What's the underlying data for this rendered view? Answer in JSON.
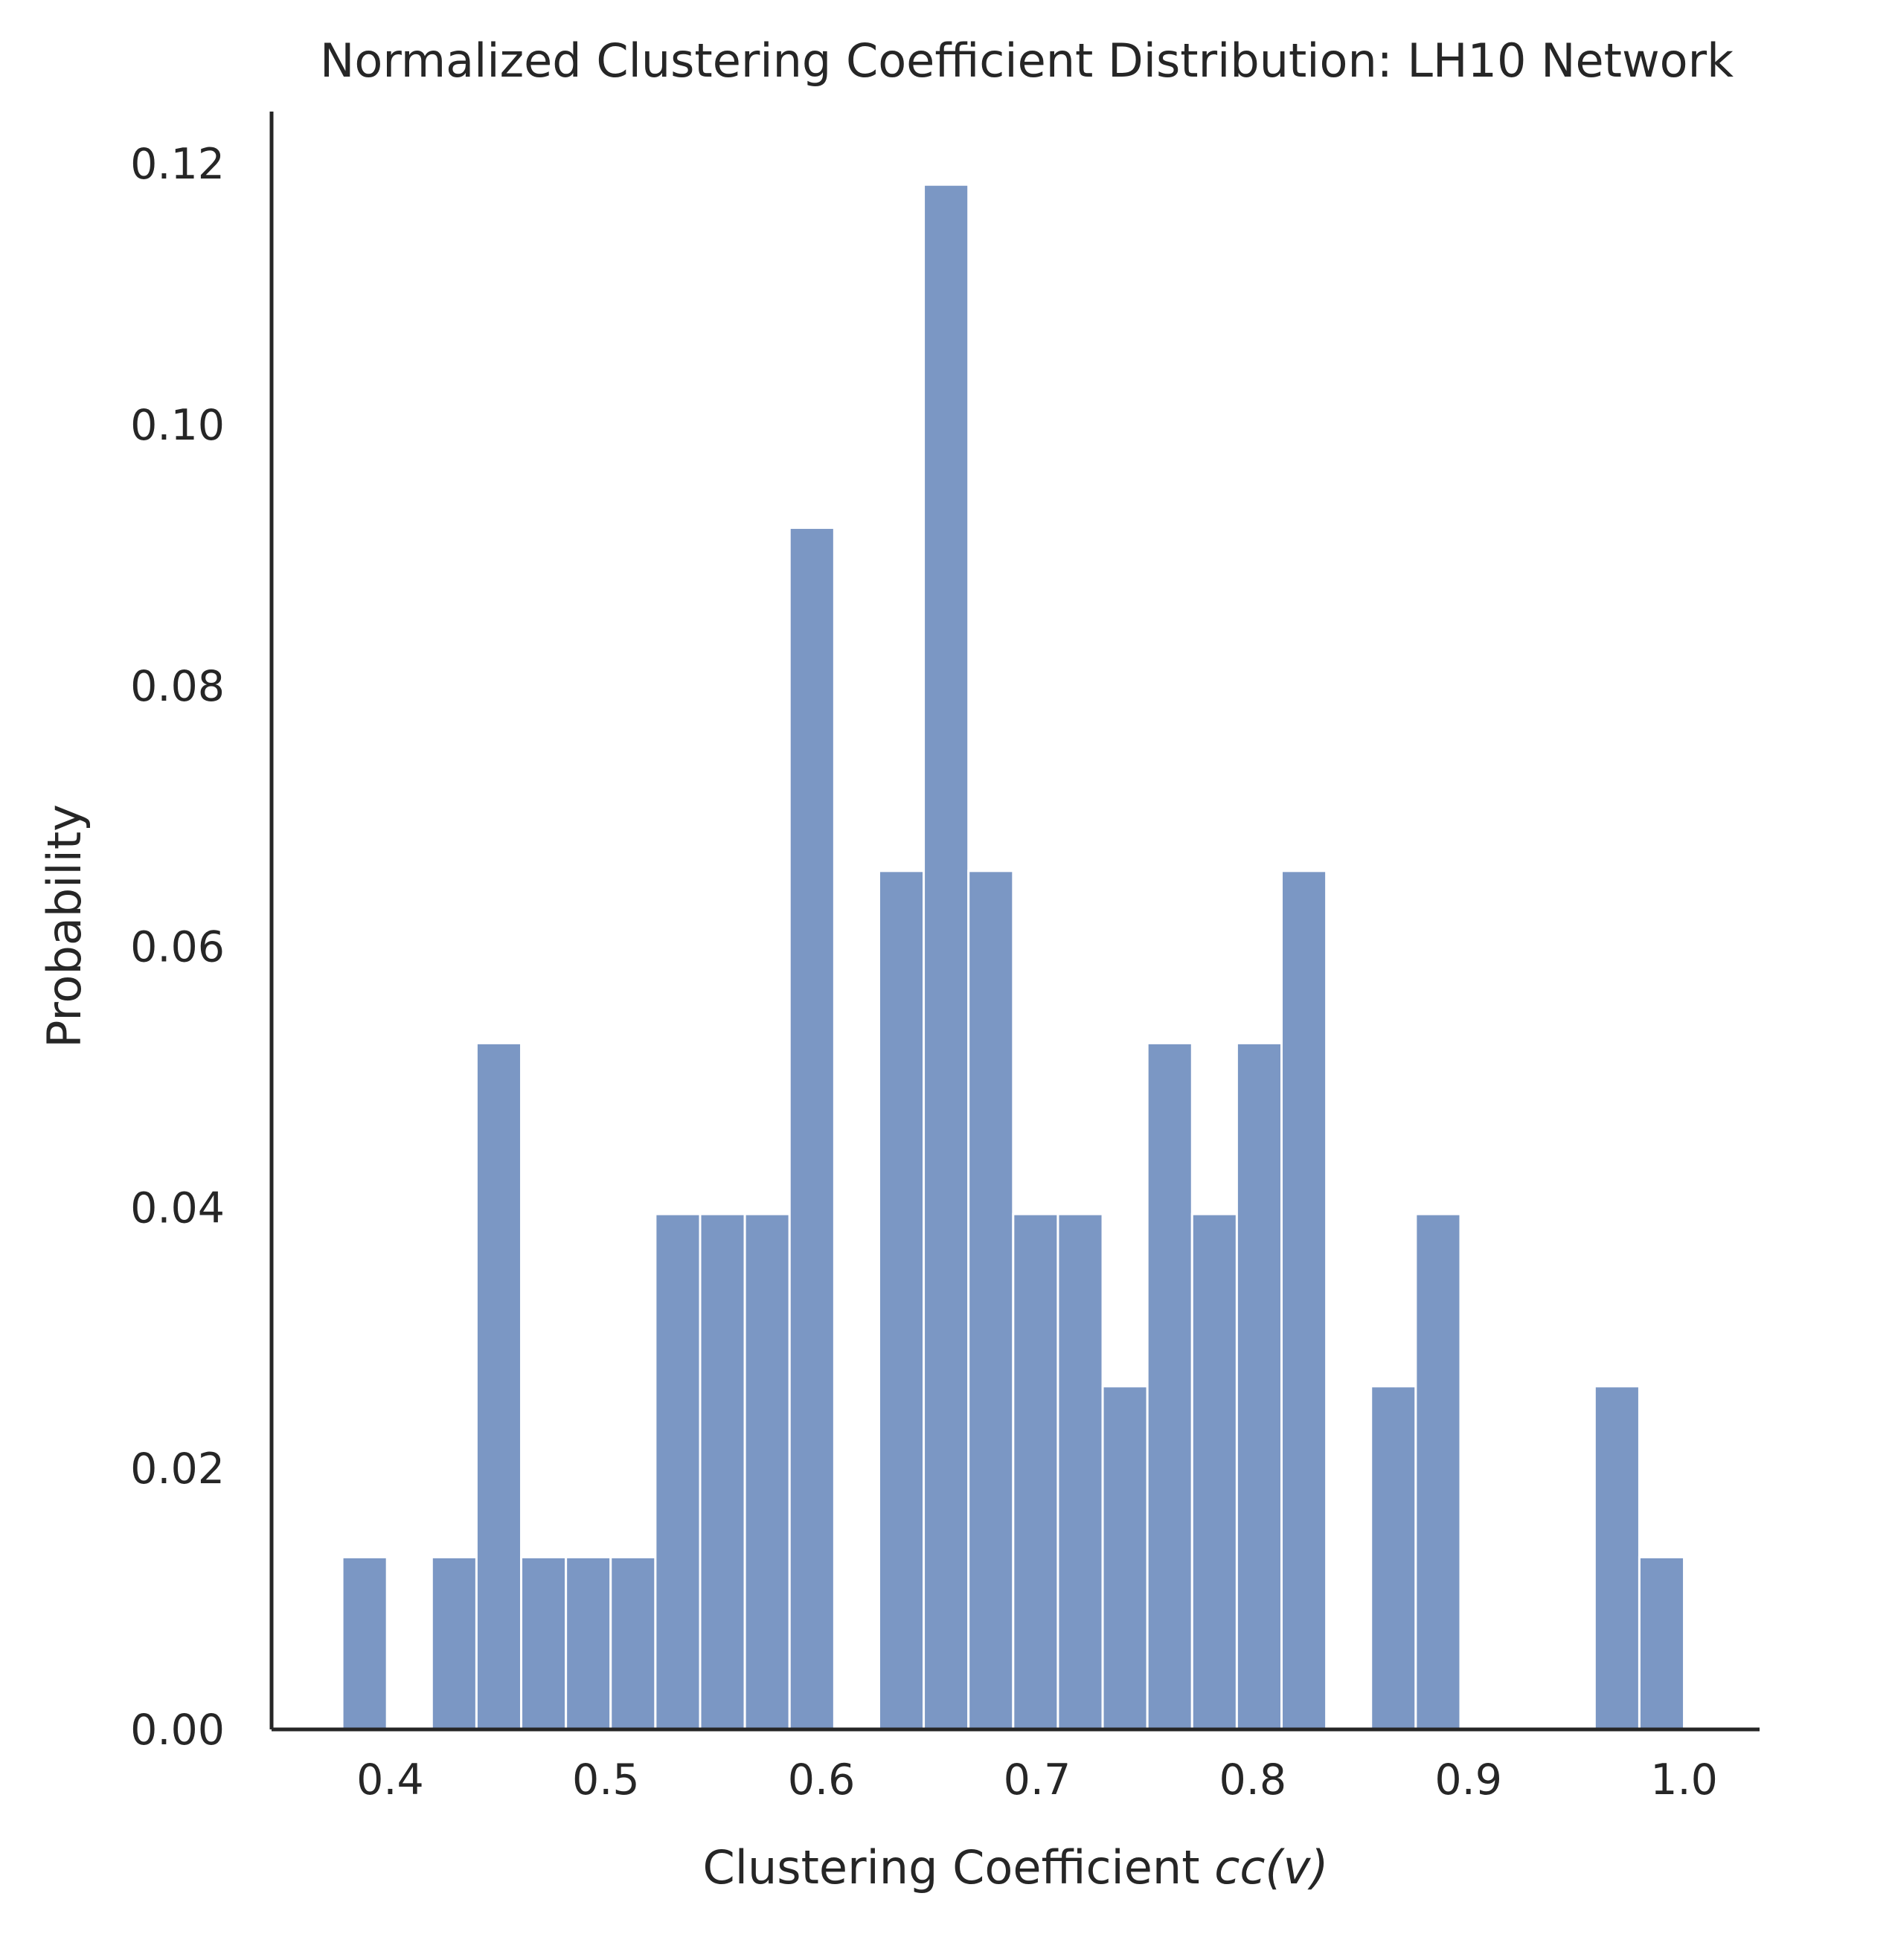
{
  "chart_data": {
    "type": "bar",
    "title": "Normalized Clustering Coefficient Distribution: LH10 Network",
    "xlabel_prefix": "Clustering Coefficient ",
    "xlabel_math": "cc(v)",
    "ylabel": "Probability",
    "xlim": [
      0.345,
      1.035
    ],
    "ylim": [
      0,
      0.124
    ],
    "xticks": [
      0.4,
      0.5,
      0.6,
      0.7,
      0.8,
      0.9,
      1.0
    ],
    "xtick_labels": [
      "0.4",
      "0.5",
      "0.6",
      "0.7",
      "0.8",
      "0.9",
      "1.0"
    ],
    "yticks": [
      0.0,
      0.02,
      0.04,
      0.06,
      0.08,
      0.1,
      0.12
    ],
    "ytick_labels": [
      "0.00",
      "0.02",
      "0.04",
      "0.06",
      "0.08",
      "0.10",
      "0.12"
    ],
    "grid": false,
    "bin_start": 0.3778,
    "bin_width": 0.02074,
    "values": [
      0.0132,
      0,
      0.0132,
      0.0526,
      0.0132,
      0.0132,
      0.0132,
      0.0395,
      0.0395,
      0.0395,
      0.0921,
      0,
      0.0658,
      0.1184,
      0.0658,
      0.0395,
      0.0395,
      0.0263,
      0.0526,
      0.0395,
      0.0526,
      0.0658,
      0,
      0.0263,
      0.0395,
      0,
      0,
      0,
      0.0263,
      0.0132
    ],
    "bar_color": "#7b97c4",
    "axis_color": "#262626"
  }
}
